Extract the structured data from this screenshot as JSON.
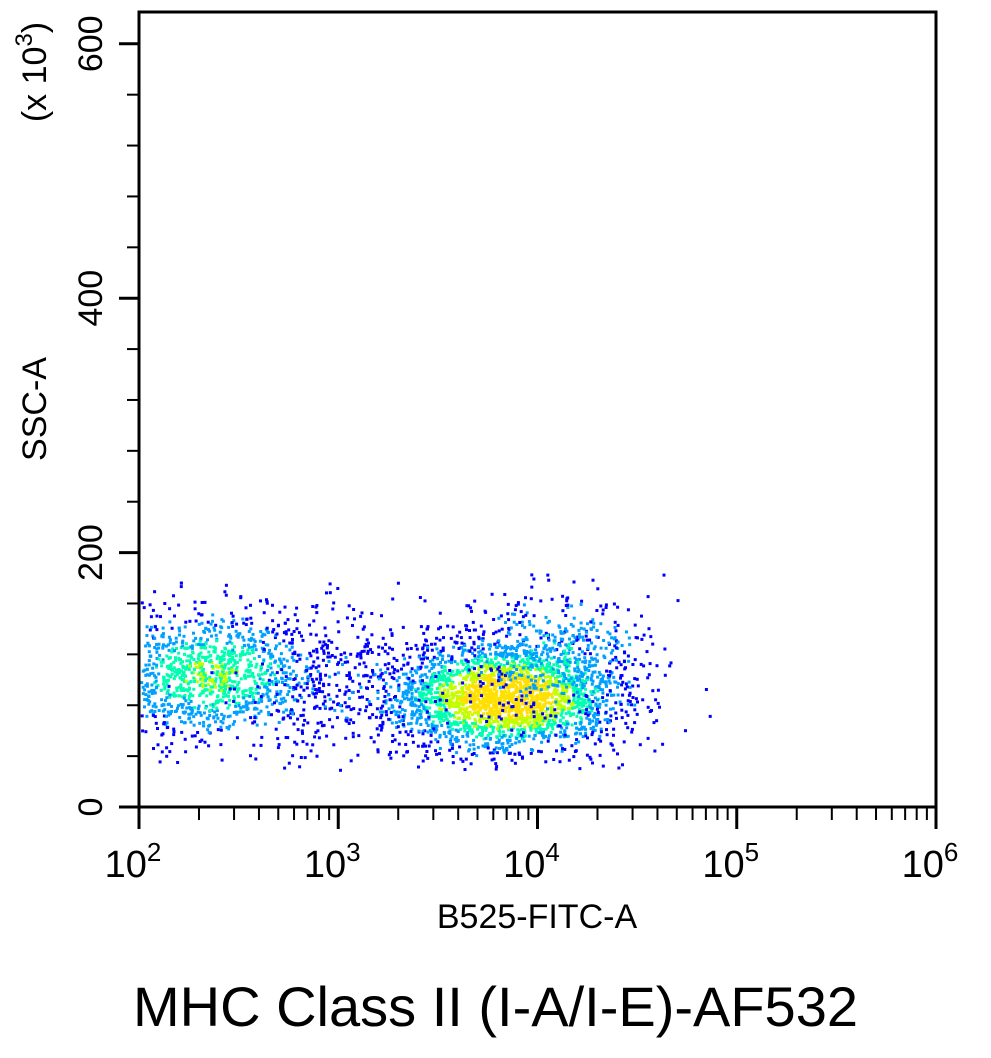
{
  "caption": "MHC Class II (I-A/I-E)-AF532",
  "chart_data": {
    "type": "scatter",
    "subtype": "flow-cytometry-density-dot-plot",
    "title": "",
    "xlabel": "B525-FITC-A",
    "ylabel": "SSC-A",
    "y_multiplier_label": "(x 10^3)",
    "x_scale": "log10",
    "xlim": [
      100,
      1000000
    ],
    "x_ticks": [
      {
        "value": 100,
        "base": "10",
        "exp": "2"
      },
      {
        "value": 1000,
        "base": "10",
        "exp": "3"
      },
      {
        "value": 10000,
        "base": "10",
        "exp": "4"
      },
      {
        "value": 100000,
        "base": "10",
        "exp": "5"
      },
      {
        "value": 1000000,
        "base": "10",
        "exp": "6"
      }
    ],
    "y_scale": "linear",
    "ylim": [
      0,
      625
    ],
    "y_ticks": [
      {
        "value": 0,
        "label": "0"
      },
      {
        "value": 200,
        "label": "200"
      },
      {
        "value": 400,
        "label": "400"
      },
      {
        "value": 600,
        "label": "600"
      }
    ],
    "y_minor_step": 40,
    "grid": false,
    "legend": "none",
    "density_colormap": [
      "#0000ff",
      "#00a0ff",
      "#00ffb0",
      "#c0ff00",
      "#ffe000"
    ],
    "populations": [
      {
        "x_center": 230,
        "x_spread_log10": 0.3,
        "y_center": 105,
        "y_spread": 26,
        "count": 1400,
        "peak_density": 0.55
      },
      {
        "x_center": 6800,
        "x_spread_log10": 0.3,
        "y_center": 88,
        "y_spread": 22,
        "count": 2500,
        "peak_density": 1.0
      },
      {
        "x_center": 12000,
        "x_spread_log10": 0.25,
        "y_center": 120,
        "y_spread": 28,
        "count": 500,
        "peak_density": 0.35
      },
      {
        "x_center": 1200,
        "x_spread_log10": 0.3,
        "y_center": 100,
        "y_spread": 35,
        "count": 250,
        "peak_density": 0.15
      }
    ]
  }
}
